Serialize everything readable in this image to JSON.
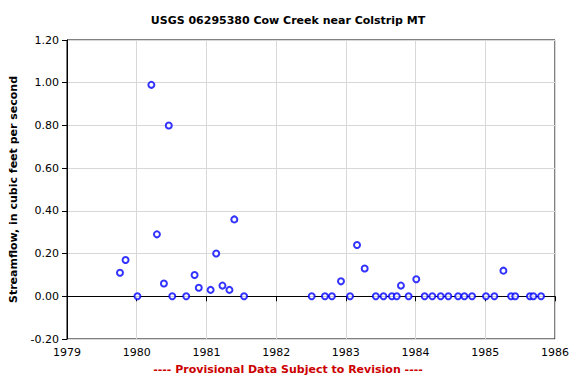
{
  "chart_data": {
    "type": "scatter",
    "title": "USGS 06295380 Cow Creek near Colstrip MT",
    "y_label": "Streamflow, in cubic feet per second",
    "annotation": "---- Provisional Data Subject to Revision ----",
    "x": [
      1979.76,
      1979.84,
      1980.01,
      1980.21,
      1980.29,
      1980.39,
      1980.46,
      1980.51,
      1980.71,
      1980.83,
      1980.89,
      1981.06,
      1981.14,
      1981.23,
      1981.33,
      1981.4,
      1981.54,
      1982.51,
      1982.7,
      1982.8,
      1982.93,
      1983.06,
      1983.16,
      1983.27,
      1983.43,
      1983.54,
      1983.66,
      1983.73,
      1983.79,
      1983.9,
      1984.01,
      1984.13,
      1984.24,
      1984.36,
      1984.47,
      1984.61,
      1984.7,
      1984.81,
      1985.01,
      1985.13,
      1985.26,
      1985.37,
      1985.43,
      1985.64,
      1985.69,
      1985.8
    ],
    "values": [
      0.11,
      0.17,
      0.0,
      0.99,
      0.29,
      0.06,
      0.8,
      0.0,
      0.0,
      0.1,
      0.04,
      0.03,
      0.2,
      0.05,
      0.03,
      0.36,
      0.0,
      0.0,
      0.0,
      0.0,
      0.07,
      0.0,
      0.24,
      0.13,
      0.0,
      0.0,
      0.0,
      0.0,
      0.05,
      0.0,
      0.08,
      0.0,
      0.0,
      0.0,
      0.0,
      0.0,
      0.0,
      0.0,
      0.0,
      0.0,
      0.12,
      0.0,
      0.0,
      0.0,
      0.0,
      0.0
    ],
    "color": "#0000ff",
    "marker": "open circle",
    "xlim": [
      1979,
      1986
    ],
    "xticks": [
      1979,
      1980,
      1981,
      1982,
      1983,
      1984,
      1985,
      1986
    ],
    "ylim": [
      -0.2,
      1.2
    ],
    "yticks": [
      {
        "value": -0.2,
        "label": "-0.20"
      },
      {
        "value": 0,
        "label": "0.00"
      },
      {
        "value": 0.2,
        "label": "0.20"
      },
      {
        "value": 0.4,
        "label": "0.40"
      },
      {
        "value": 0.6,
        "label": "0.60"
      },
      {
        "value": 0.8,
        "label": "0.80"
      },
      {
        "value": 1.0,
        "label": "1.00"
      },
      {
        "value": 1.2,
        "label": "1.20"
      }
    ],
    "grid": true
  }
}
